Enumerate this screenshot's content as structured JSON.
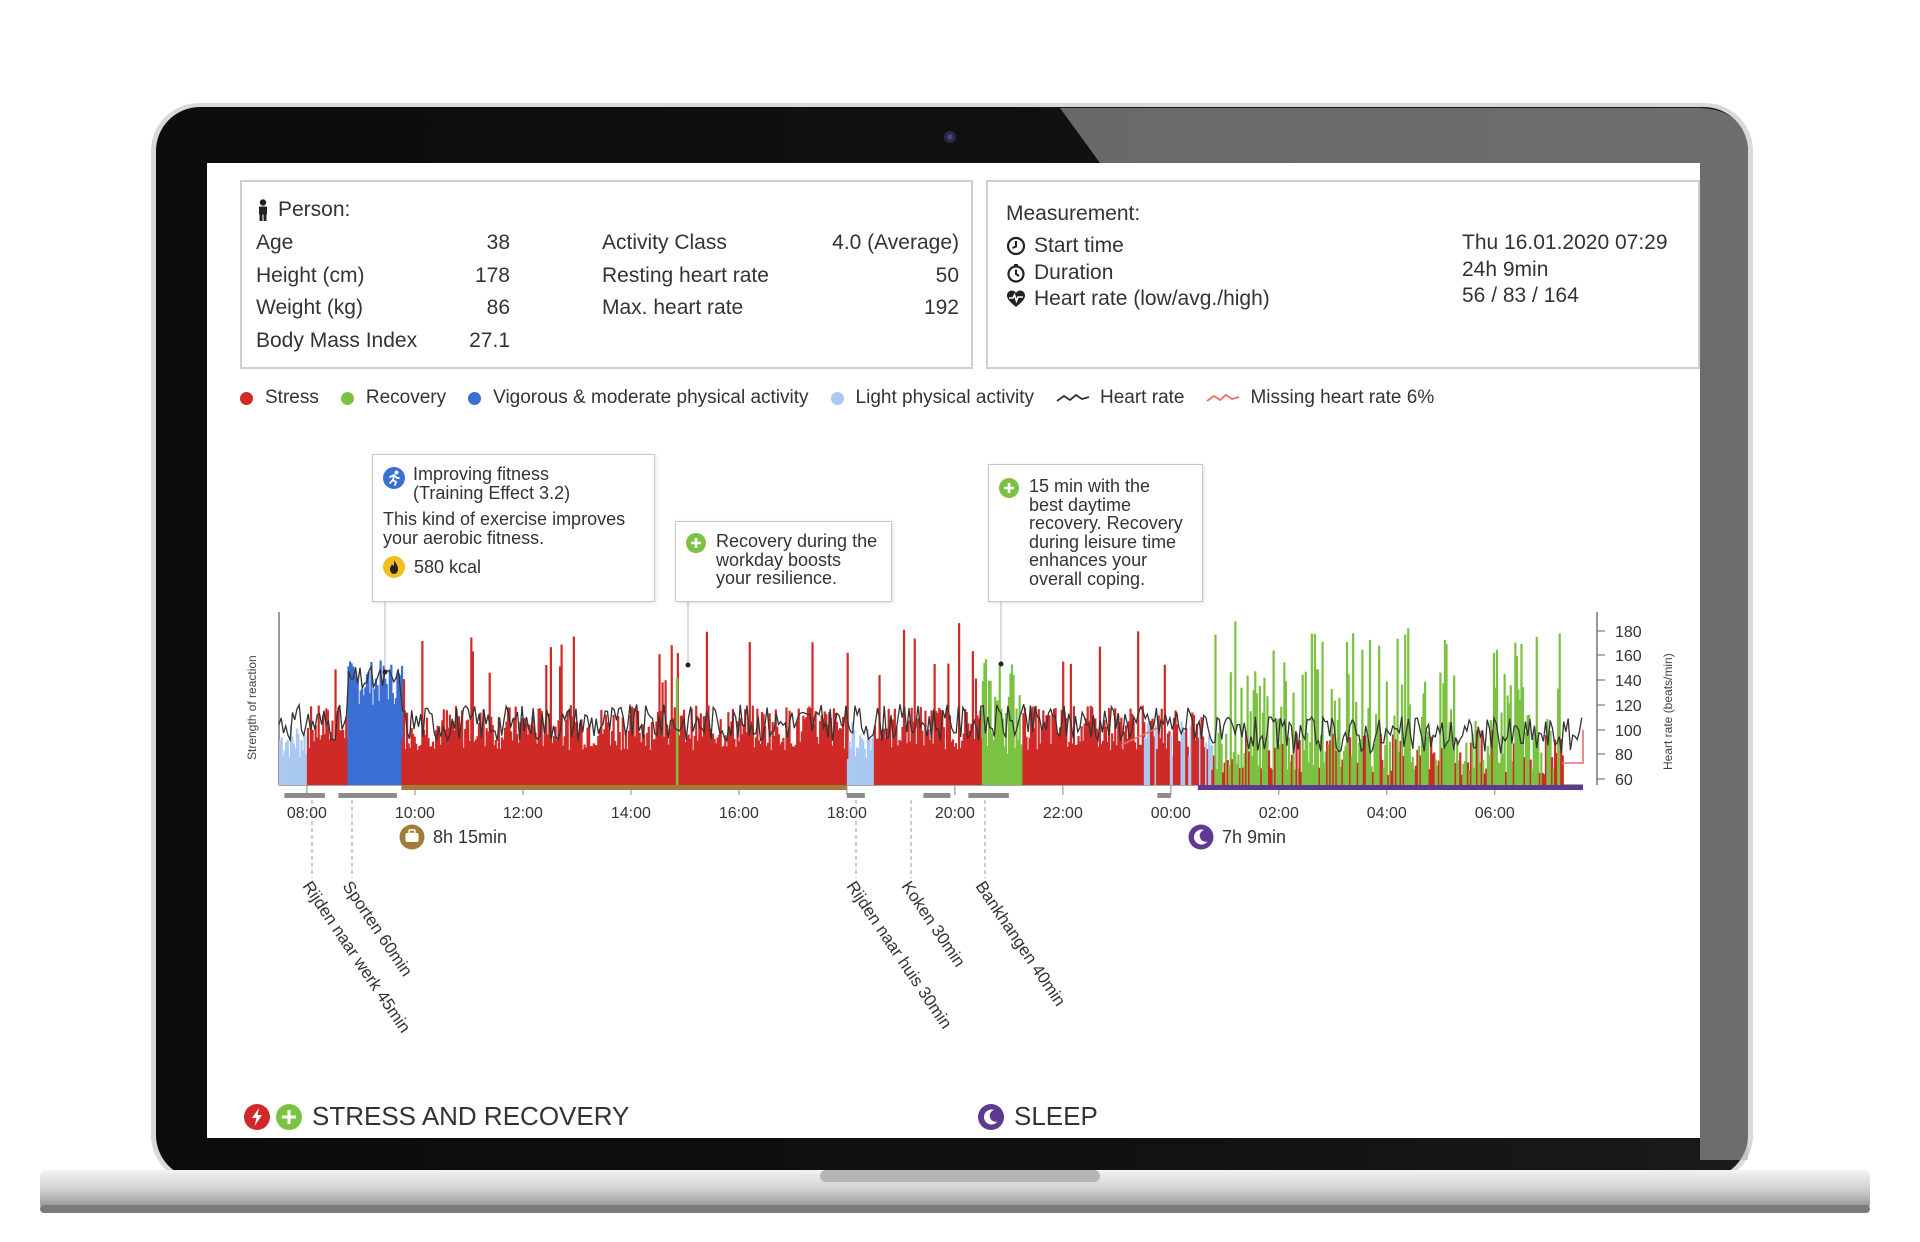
{
  "person": {
    "header": "Person:",
    "rows_left": [
      {
        "label": "Age",
        "value": "38"
      },
      {
        "label": "Height (cm)",
        "value": "178"
      },
      {
        "label": "Weight (kg)",
        "value": "86"
      },
      {
        "label": "Body Mass Index",
        "value": "27.1"
      }
    ],
    "rows_right": [
      {
        "label": "Activity Class",
        "value": "4.0 (Average)"
      },
      {
        "label": "Resting heart rate",
        "value": "50"
      },
      {
        "label": "Max. heart rate",
        "value": "192"
      }
    ]
  },
  "measurement": {
    "header": "Measurement:",
    "rows": [
      {
        "label": "Start time",
        "value": "Thu 16.01.2020 07:29",
        "icon": "clock-icon"
      },
      {
        "label": "Duration",
        "value": "24h 9min",
        "icon": "stopwatch-icon"
      },
      {
        "label": "Heart rate (low/avg./high)",
        "value": "56 / 83 / 164",
        "icon": "heart-rate-icon"
      }
    ]
  },
  "legend": [
    {
      "label": "Stress",
      "color": "#cf2a27",
      "kind": "dot"
    },
    {
      "label": "Recovery",
      "color": "#7cc242",
      "kind": "dot"
    },
    {
      "label": "Vigorous & moderate physical activity",
      "color": "#3a6fd4",
      "kind": "dot"
    },
    {
      "label": "Light physical activity",
      "color": "#a9c8f2",
      "kind": "dot"
    },
    {
      "label": "Heart rate",
      "color": "#333333",
      "kind": "line"
    },
    {
      "label": "Missing heart rate 6%",
      "color": "#e8706c",
      "kind": "line"
    }
  ],
  "callouts": [
    {
      "title": "Improving fitness\n(Training Effect 3.2)",
      "body": "This kind of exercise improves\nyour aerobic fitness.",
      "kcal": "580 kcal",
      "icon": "running-icon"
    },
    {
      "title": "Recovery during the\nworkday boosts\nyour resilience.",
      "icon": "plus-icon"
    },
    {
      "title": "15 min with the\nbest daytime\nrecovery. Recovery\nduring leisure time\nenhances your\noverall coping.",
      "icon": "plus-icon"
    }
  ],
  "chart_data": {
    "type": "bar",
    "ylabel_left": "Strength of reaction",
    "ylabel_right": "Heart rate (beats/min)",
    "y_right_ticks": [
      60,
      80,
      100,
      120,
      140,
      160,
      180
    ],
    "x_ticks": [
      "08:00",
      "10:00",
      "12:00",
      "14:00",
      "16:00",
      "18:00",
      "20:00",
      "22:00",
      "00:00",
      "02:00",
      "04:00",
      "06:00"
    ],
    "start_time": "07:29",
    "duration_min": 1449,
    "segments": [
      {
        "from": "07:29",
        "to": "08:00",
        "kind": "light"
      },
      {
        "from": "08:00",
        "to": "08:45",
        "kind": "stress"
      },
      {
        "from": "08:45",
        "to": "09:45",
        "kind": "vigorous"
      },
      {
        "from": "09:45",
        "to": "18:00",
        "kind": "stress"
      },
      {
        "from": "18:00",
        "to": "18:30",
        "kind": "light"
      },
      {
        "from": "18:30",
        "to": "20:30",
        "kind": "stress"
      },
      {
        "from": "20:30",
        "to": "21:15",
        "kind": "recovery"
      },
      {
        "from": "21:15",
        "to": "23:30",
        "kind": "stress"
      },
      {
        "from": "23:30",
        "to": "00:45",
        "kind": "mixed"
      },
      {
        "from": "00:45",
        "to": "07:15",
        "kind": "recovery"
      }
    ],
    "durations": [
      {
        "label": "8h 15min",
        "icon": "briefcase-icon"
      },
      {
        "label": "7h 9min",
        "icon": "moon-icon"
      }
    ],
    "activities": [
      "Rijden naar werk 45min",
      "Sporten 60min",
      "Rijden naar huis 30min",
      "Koken 30min",
      "Bankhangen 40min"
    ]
  },
  "footer": {
    "stress_recovery": "STRESS AND RECOVERY",
    "sleep": "SLEEP"
  }
}
